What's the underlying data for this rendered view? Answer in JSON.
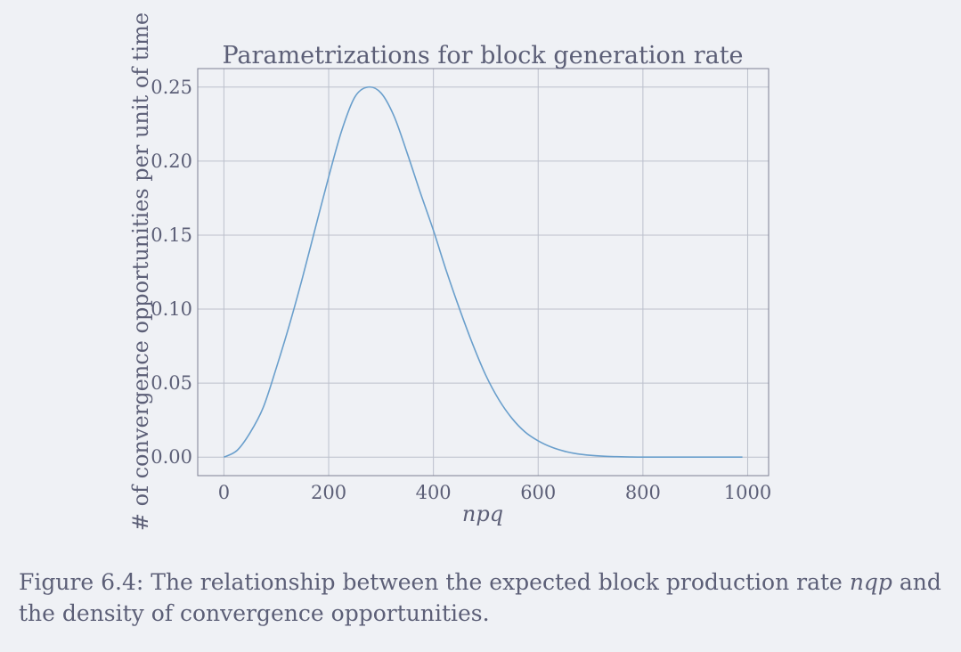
{
  "chart_data": {
    "type": "line",
    "title": "Parametrizations for block generation rate",
    "xlabel": "npq",
    "ylabel": "# of convergence opportunities per unit of time",
    "xlim": [
      -50,
      1040
    ],
    "ylim": [
      -0.0125,
      0.2625
    ],
    "xticks": [
      0,
      200,
      400,
      600,
      800,
      1000
    ],
    "xtick_labels": [
      "0",
      "200",
      "400",
      "600",
      "800",
      "1000"
    ],
    "yticks": [
      0.0,
      0.05,
      0.1,
      0.15,
      0.2,
      0.25
    ],
    "ytick_labels": [
      "0.00",
      "0.05",
      "0.10",
      "0.15",
      "0.20",
      "0.25"
    ],
    "grid": true,
    "series": [
      {
        "color": "#6a9fcc",
        "x": [
          0,
          25,
          50,
          75,
          100,
          125,
          150,
          175,
          200,
          225,
          250,
          275,
          300,
          325,
          350,
          375,
          400,
          425,
          450,
          475,
          500,
          525,
          550,
          575,
          600,
          625,
          650,
          675,
          700,
          725,
          750,
          775,
          800,
          850,
          900,
          950,
          990
        ],
        "y": [
          0.0,
          0.0045,
          0.0165,
          0.0335,
          0.0602,
          0.0893,
          0.1212,
          0.1554,
          0.1893,
          0.2207,
          0.2433,
          0.25,
          0.246,
          0.2302,
          0.2053,
          0.1787,
          0.1532,
          0.1255,
          0.1,
          0.0763,
          0.0553,
          0.0388,
          0.0262,
          0.017,
          0.011,
          0.0068,
          0.004,
          0.0022,
          0.0012,
          0.0006,
          0.0003,
          0.0001,
          0.0,
          0.0,
          0.0,
          0.0,
          0.0
        ]
      }
    ]
  },
  "caption": {
    "prefix": "Figure 6.4:  The relationship between the expected block production rate ",
    "math": "nqp",
    "suffix": " and the density of convergence opportunities."
  },
  "colors": {
    "background": "#eff1f5",
    "text": "#5c5f77",
    "grid": "#bcc0cc",
    "line": "#6a9fcc"
  }
}
